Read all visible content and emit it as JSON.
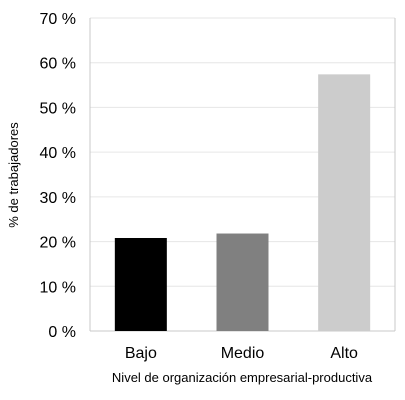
{
  "chart_data": {
    "type": "bar",
    "categories": [
      "Bajo",
      "Medio",
      "Alto"
    ],
    "values": [
      20.8,
      21.8,
      57.4
    ],
    "colors": [
      "#000000",
      "#808080",
      "#cccccc"
    ],
    "ylim": [
      0,
      70
    ],
    "yticks": [
      0,
      10,
      20,
      30,
      40,
      50,
      60,
      70
    ],
    "ytick_labels": [
      "0 %",
      "10 %",
      "20 %",
      "30 %",
      "40 %",
      "50 %",
      "60 %",
      "70 %"
    ],
    "xlabel": "Nivel de organización empresarial-productiva",
    "ylabel": "% de trabajadores",
    "grid": true
  }
}
